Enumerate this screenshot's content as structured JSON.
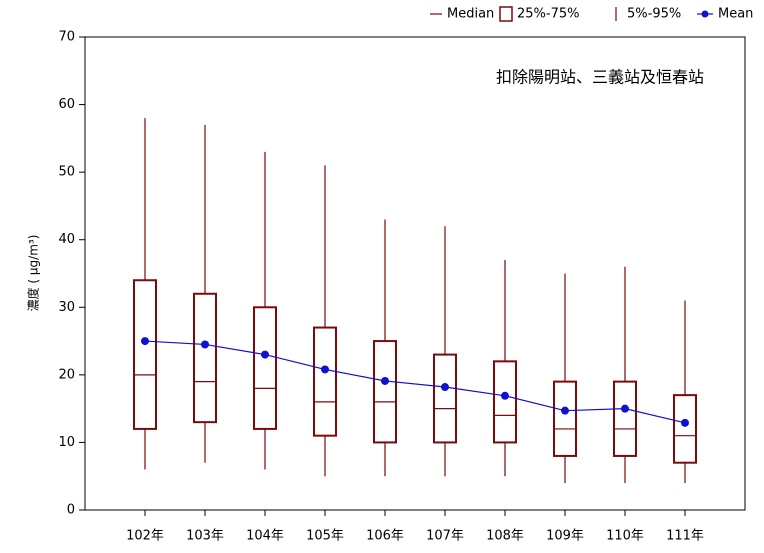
{
  "chart_data": {
    "type": "box",
    "annotation": "扣除陽明站、三義站及恒春站",
    "ylabel": "濃度 ( μg/m³)",
    "categories": [
      "102年",
      "103年",
      "104年",
      "105年",
      "106年",
      "107年",
      "108年",
      "109年",
      "110年",
      "111年"
    ],
    "low": [
      6,
      7,
      6,
      5,
      5,
      5,
      5,
      4,
      4,
      4
    ],
    "q1": [
      12,
      13,
      12,
      11,
      10,
      10,
      10,
      8,
      8,
      7
    ],
    "median": [
      20,
      19,
      18,
      16,
      16,
      15,
      14,
      12,
      12,
      11
    ],
    "q3": [
      34,
      32,
      30,
      27,
      25,
      23,
      22,
      19,
      19,
      17
    ],
    "high": [
      58,
      57,
      53,
      51,
      43,
      42,
      37,
      35,
      36,
      31
    ],
    "mean": [
      25,
      24.5,
      23,
      20.8,
      19.1,
      18.2,
      16.9,
      14.7,
      15,
      12.9
    ],
    "legend": [
      "Median",
      "25%-75%",
      "5%-95%",
      "Mean"
    ],
    "box_color": "#7b0a0a",
    "mean_color": "#1010d0",
    "ylim": [
      0,
      70
    ],
    "yticks": [
      0,
      10,
      20,
      30,
      40,
      50,
      60,
      70
    ]
  }
}
